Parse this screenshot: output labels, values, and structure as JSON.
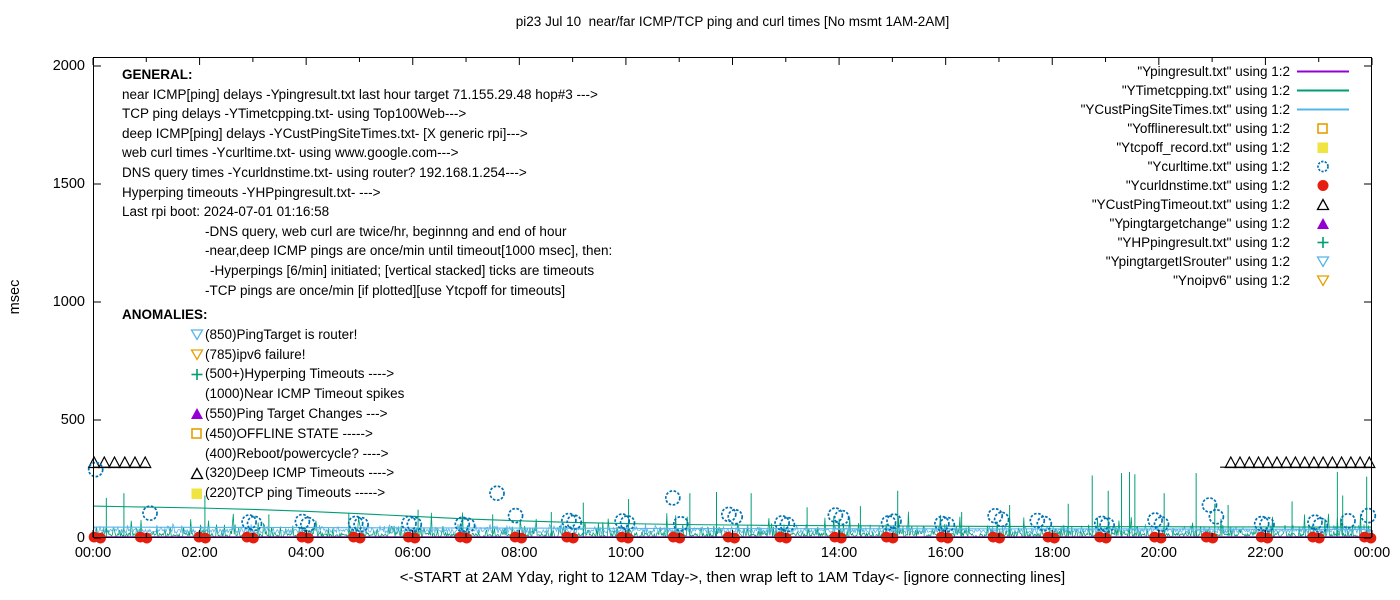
{
  "chart_data": {
    "type": "line",
    "title": "pi23 Jul 10  near/far ICMP/TCP ping and curl times [No msmt 1AM-2AM]",
    "xlabel": "<-START at 2AM Yday, right to 12AM Tday->, then wrap left to 1AM Tday<- [ignore connecting lines]",
    "ylabel": "msec",
    "xlim": [
      0,
      24
    ],
    "ylim": [
      0,
      2000
    ],
    "xticks": {
      "values": [
        0,
        2,
        4,
        6,
        8,
        10,
        12,
        14,
        16,
        18,
        20,
        22,
        24
      ],
      "labels": [
        "00:00",
        "02:00",
        "04:00",
        "06:00",
        "08:00",
        "10:00",
        "12:00",
        "14:00",
        "16:00",
        "18:00",
        "20:00",
        "22:00",
        "00:00"
      ],
      "minor_every_hour": true
    },
    "yticks": {
      "values": [
        0,
        500,
        1000,
        1500,
        2000
      ],
      "labels": [
        "0",
        "500",
        "1000",
        "1500",
        "2000"
      ]
    },
    "grid": false,
    "legend_position": "top-right-inside",
    "colors": {
      "violet": "#9400D3",
      "teal_green": "#009E73",
      "sky_blue": "#56B4E9",
      "orange": "#E69F00",
      "yellow": "#F0E442",
      "blue": "#0072B2",
      "red": "#E51E10",
      "black": "#000000"
    },
    "legend": [
      {
        "label": "\"Ypingresult.txt\" using 1:2",
        "symbol": "line",
        "color": "#9400D3"
      },
      {
        "label": "\"YTimetcpping.txt\" using 1:2",
        "symbol": "line",
        "color": "#009E73"
      },
      {
        "label": "\"YCustPingSiteTimes.txt\" using 1:2",
        "symbol": "line",
        "color": "#56B4E9"
      },
      {
        "label": "\"Yofflineresult.txt\" using 1:2",
        "symbol": "square-open",
        "color": "#E69F00"
      },
      {
        "label": "\"Ytcpoff_record.txt\" using 1:2",
        "symbol": "square-filled",
        "color": "#F0E442"
      },
      {
        "label": "\"Ycurltime.txt\" using 1:2",
        "symbol": "circle-open",
        "color": "#0072B2"
      },
      {
        "label": "\"Ycurldnstime.txt\" using 1:2",
        "symbol": "circle-filled",
        "color": "#E51E10"
      },
      {
        "label": "\"YCustPingTimeout.txt\" using 1:2",
        "symbol": "triangle-open",
        "color": "#000000"
      },
      {
        "label": "\"Ypingtargetchange\" using 1:2",
        "symbol": "triangle-filled",
        "color": "#9400D3"
      },
      {
        "label": "\"YHPpingresult.txt\" using 1:2",
        "symbol": "plus",
        "color": "#009E73"
      },
      {
        "label": "\"YpingtargetISrouter\" using 1:2",
        "symbol": "triangle-down-open",
        "color": "#56B4E9"
      },
      {
        "label": "\"Ynoipv6\" using 1:2",
        "symbol": "triangle-down-open",
        "color": "#E69F00"
      }
    ],
    "annotations": {
      "general_header": "GENERAL:",
      "general": [
        {
          "text": "near ICMP[ping] delays -Ypingresult.txt last hour target 71.155.29.48 hop#3 --->",
          "indent": 0
        },
        {
          "text": "TCP ping delays -YTimetcpping.txt- using Top100Web--->",
          "indent": 0
        },
        {
          "text": "deep ICMP[ping] delays -YCustPingSiteTimes.txt- [X generic rpi]--->",
          "indent": 0
        },
        {
          "text": "web curl times -Ycurltime.txt- using www.google.com--->",
          "indent": 0
        },
        {
          "text": "DNS query times -Ycurldnstime.txt- using router? 192.168.1.254--->",
          "indent": 0
        },
        {
          "text": "Hyperping timeouts -YHPpingresult.txt- --->",
          "indent": 0
        },
        {
          "text": "Last rpi boot: 2024-07-01 01:16:58",
          "indent": 0
        },
        {
          "text": "-DNS query, web curl are twice/hr, beginnng and end of hour",
          "indent": 1
        },
        {
          "text": "-near,deep ICMP pings are once/min until timeout[1000 msec], then:",
          "indent": 1
        },
        {
          "text": "-Hyperpings [6/min] initiated; [vertical stacked] ticks are timeouts",
          "indent": 2
        },
        {
          "text": "-TCP pings are once/min [if plotted][use Ytcpoff for timeouts]",
          "indent": 1
        }
      ],
      "anomalies_header": "ANOMALIES:",
      "anomalies": [
        {
          "marker": "triangle-down-open",
          "color": "#56B4E9",
          "text": "(850)PingTarget is router!"
        },
        {
          "marker": "triangle-down-open",
          "color": "#E69F00",
          "text": "(785)ipv6 failure!"
        },
        {
          "marker": "plus",
          "color": "#009E73",
          "text": "(500+)Hyperping Timeouts ---->"
        },
        {
          "marker": null,
          "color": null,
          "text": "(1000)Near ICMP Timeout spikes"
        },
        {
          "marker": "triangle-filled",
          "color": "#9400D3",
          "text": "(550)Ping Target Changes --->"
        },
        {
          "marker": "square-open",
          "color": "#E69F00",
          "text": "(450)OFFLINE STATE ----->"
        },
        {
          "marker": null,
          "color": null,
          "text": "(400)Reboot/powercycle? ---->"
        },
        {
          "marker": "triangle-open",
          "color": "#000000",
          "text": "(320)Deep ICMP Timeouts ---->"
        },
        {
          "marker": "square-filled",
          "color": "#F0E442",
          "text": "(220)TCP ping Timeouts ----->"
        }
      ]
    },
    "series": {
      "near_icmp_line": {
        "file": "Ypingresult.txt",
        "color": "#9400D3",
        "points": [
          [
            0,
            4
          ],
          [
            24,
            4
          ]
        ]
      },
      "tcp_trend_line": {
        "file": "YTimetcpping.txt",
        "color": "#009E73",
        "points": [
          [
            0,
            135
          ],
          [
            1,
            131
          ],
          [
            2,
            127
          ],
          [
            3,
            121
          ],
          [
            4,
            113
          ],
          [
            5,
            103
          ],
          [
            6,
            92
          ],
          [
            7,
            81
          ],
          [
            8,
            73
          ],
          [
            9,
            66
          ],
          [
            10,
            61
          ],
          [
            11,
            57
          ],
          [
            12,
            55
          ],
          [
            13,
            53
          ],
          [
            14,
            52
          ],
          [
            15,
            51
          ],
          [
            16,
            50
          ],
          [
            17,
            49
          ],
          [
            18,
            49
          ],
          [
            19,
            48
          ],
          [
            20,
            48
          ],
          [
            21,
            47
          ],
          [
            22,
            47
          ],
          [
            23,
            46
          ],
          [
            24,
            46
          ]
        ]
      },
      "deep_icmp_line": {
        "file": "YCustPingSiteTimes.txt",
        "color": "#56B4E9",
        "points": [
          [
            0,
            46
          ],
          [
            4,
            44
          ],
          [
            8,
            42
          ],
          [
            12,
            40
          ],
          [
            16,
            39
          ],
          [
            20,
            38
          ],
          [
            24,
            37
          ]
        ]
      },
      "noise": {
        "seed": 20240710,
        "per_hour": 60,
        "tcp": {
          "color": "#009E73",
          "base": 2,
          "rand": 18,
          "p_mid": 0.3,
          "mid": 38,
          "p_high": 0.05,
          "high_base": 35,
          "high": 50
        },
        "deep": {
          "color": "#56B4E9",
          "base": 20,
          "rand": 18,
          "p_mid": 0.25,
          "mid": 24
        }
      },
      "tcp_spikes": {
        "color": "#009E73",
        "points": [
          [
            0.25,
            170
          ],
          [
            0.58,
            190
          ],
          [
            2.1,
            180
          ],
          [
            3.3,
            100
          ],
          [
            4.8,
            105
          ],
          [
            6.1,
            120
          ],
          [
            7.5,
            100
          ],
          [
            8.6,
            110
          ],
          [
            9.2,
            150
          ],
          [
            10.05,
            165
          ],
          [
            11.2,
            190
          ],
          [
            11.7,
            195
          ],
          [
            12.35,
            190
          ],
          [
            13.4,
            130
          ],
          [
            14.4,
            135
          ],
          [
            15.1,
            200
          ],
          [
            16.3,
            110
          ],
          [
            17.2,
            140
          ],
          [
            18.3,
            145
          ],
          [
            18.75,
            265
          ],
          [
            19.05,
            200
          ],
          [
            19.3,
            275
          ],
          [
            19.45,
            280
          ],
          [
            19.55,
            270
          ],
          [
            20.1,
            190
          ],
          [
            20.7,
            275
          ],
          [
            21.05,
            145
          ],
          [
            21.3,
            140
          ],
          [
            22.5,
            155
          ],
          [
            23.35,
            280
          ],
          [
            23.45,
            180
          ],
          [
            23.9,
            260
          ]
        ]
      },
      "curl_times": {
        "file": "Ycurltime.txt",
        "color": "#0072B2",
        "marker": "circle-open",
        "points": [
          [
            0.05,
            290
          ],
          [
            1.07,
            105
          ],
          [
            2.93,
            68
          ],
          [
            3.03,
            62
          ],
          [
            3.93,
            70
          ],
          [
            4.03,
            57
          ],
          [
            4.93,
            62
          ],
          [
            5.03,
            57
          ],
          [
            5.93,
            62
          ],
          [
            6.03,
            58
          ],
          [
            6.93,
            58
          ],
          [
            7.03,
            54
          ],
          [
            7.58,
            190
          ],
          [
            7.93,
            95
          ],
          [
            8.93,
            74
          ],
          [
            9.03,
            67
          ],
          [
            9.93,
            72
          ],
          [
            10.03,
            64
          ],
          [
            10.88,
            170
          ],
          [
            11.03,
            60
          ],
          [
            11.93,
            100
          ],
          [
            12.05,
            90
          ],
          [
            12.93,
            64
          ],
          [
            13.03,
            57
          ],
          [
            13.93,
            97
          ],
          [
            14.05,
            87
          ],
          [
            14.93,
            64
          ],
          [
            15.03,
            71
          ],
          [
            15.93,
            61
          ],
          [
            16.03,
            57
          ],
          [
            16.93,
            94
          ],
          [
            17.05,
            79
          ],
          [
            17.72,
            74
          ],
          [
            17.85,
            61
          ],
          [
            18.93,
            62
          ],
          [
            19.03,
            55
          ],
          [
            19.93,
            76
          ],
          [
            20.05,
            59
          ],
          [
            20.95,
            140
          ],
          [
            21.08,
            90
          ],
          [
            21.93,
            61
          ],
          [
            22.03,
            57
          ],
          [
            22.93,
            67
          ],
          [
            23.03,
            54
          ],
          [
            23.55,
            73
          ],
          [
            23.93,
            95
          ]
        ]
      },
      "dns_times": {
        "file": "Ycurldnstime.txt",
        "color": "#E51E10",
        "marker": "circle-filled",
        "hours": [
          0.08,
          0.95,
          2.05,
          2.95,
          3.98,
          4.95,
          5.98,
          6.95,
          7.98,
          8.95,
          9.98,
          10.95,
          11.98,
          12.95,
          13.98,
          14.95,
          15.98,
          16.95,
          17.98,
          18.95,
          19.98,
          20.95,
          21.98,
          22.95,
          23.92
        ],
        "msec": 4
      },
      "deep_timeouts": {
        "file": "YCustPingTimeout.txt",
        "color": "#000000",
        "marker": "triangle-open",
        "msec": 320,
        "rows": [
          {
            "x_start": 0.02,
            "x_end": 0.98,
            "count": 6,
            "line_y": 300,
            "line_start": 0.0,
            "line_end": 1.02
          },
          {
            "x_start": 21.35,
            "x_end": 23.95,
            "count": 16,
            "line_y": 300,
            "line_start": 21.15,
            "line_end": 24.0
          }
        ]
      }
    }
  }
}
